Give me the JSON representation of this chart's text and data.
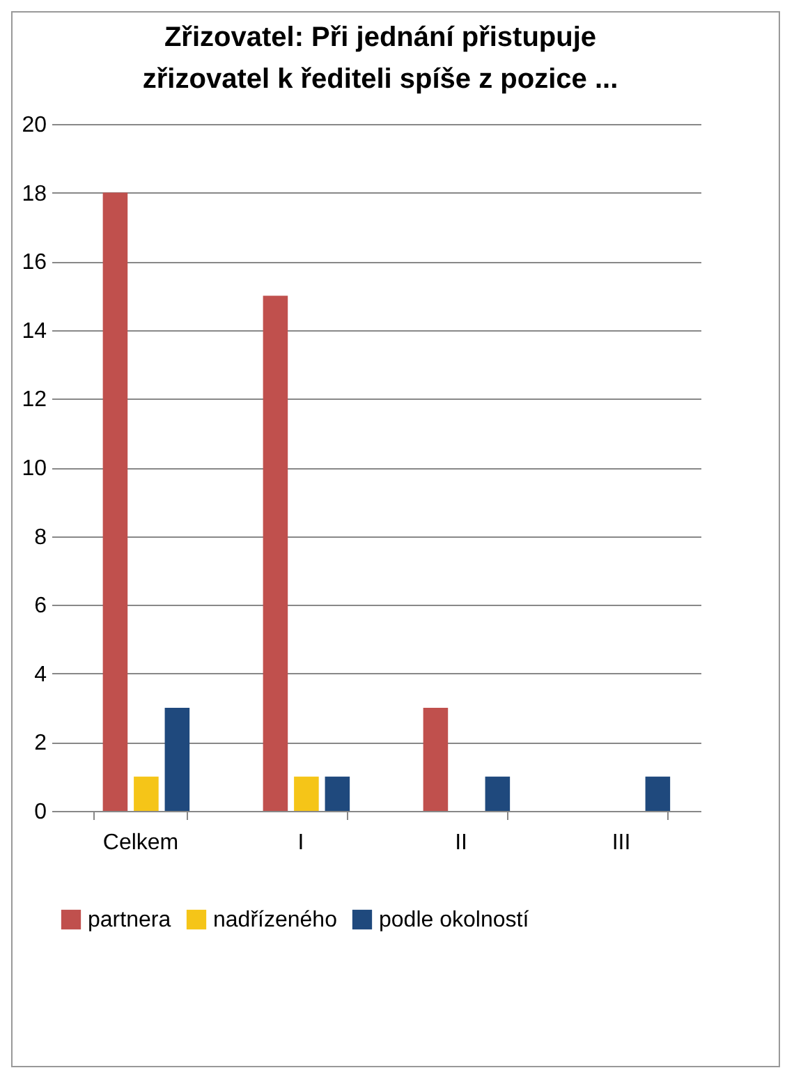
{
  "chart_data": {
    "type": "bar",
    "title": "Zřizovatel: Při jednání přistupuje zřizovatel k řediteli spíše z pozice ...",
    "categories": [
      "Celkem",
      "I",
      "II",
      "III"
    ],
    "series": [
      {
        "name": "partnera",
        "color": "#c0504d",
        "values": [
          18,
          15,
          3,
          0
        ]
      },
      {
        "name": "nadřízeného",
        "color": "#f5c518",
        "values": [
          1,
          1,
          0,
          0
        ]
      },
      {
        "name": "podle okolností",
        "color": "#1f497d",
        "values": [
          3,
          1,
          1,
          1
        ]
      }
    ],
    "ylim": [
      0,
      20
    ],
    "yticks": [
      0,
      2,
      4,
      6,
      8,
      10,
      12,
      14,
      16,
      18,
      20
    ],
    "grid": "y",
    "legend": "bottom"
  }
}
